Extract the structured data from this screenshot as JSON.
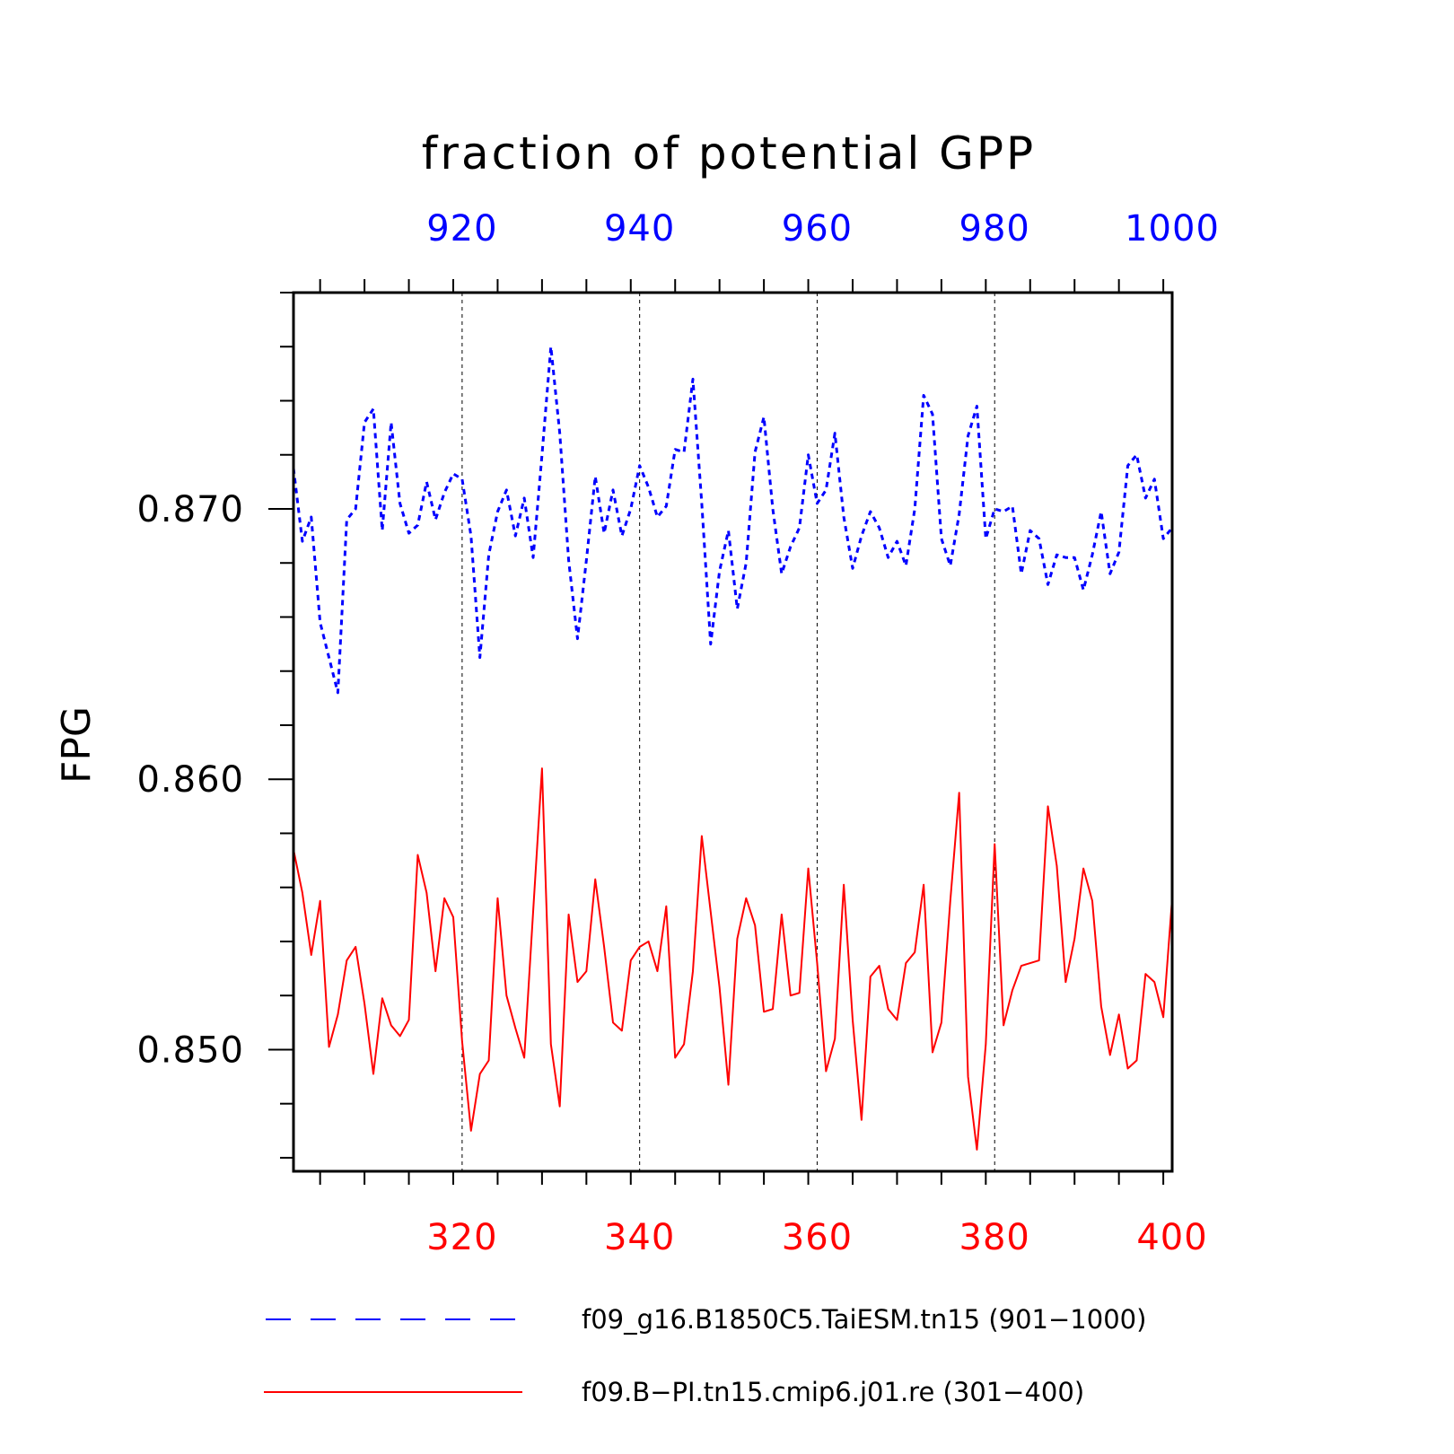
{
  "chart_data": {
    "type": "line",
    "title": "fraction of potential GPP",
    "ylabel": "FPG",
    "ylim": [
      0.8455,
      0.878
    ],
    "y_ticks": [
      0.85,
      0.86,
      0.87
    ],
    "y_tick_labels": [
      "0.850",
      "0.860",
      "0.870"
    ],
    "y_minor_step": 0.002,
    "grid_x": true,
    "legend_position": "bottom",
    "axes": {
      "top": {
        "range": [
          901,
          1000
        ],
        "ticks": [
          920,
          940,
          960,
          980,
          1000
        ],
        "tick_labels": [
          "920",
          "940",
          "960",
          "980",
          "1000"
        ],
        "color": "#0000ff"
      },
      "bottom": {
        "range": [
          301,
          400
        ],
        "ticks": [
          320,
          340,
          360,
          380,
          400
        ],
        "tick_labels": [
          "320",
          "340",
          "360",
          "380",
          "400"
        ],
        "color": "#ff0000"
      }
    },
    "series": [
      {
        "name": "f09_g16.B1850C5.TaiESM.tn15 (901−1000)",
        "axis": "top",
        "color": "#0000ff",
        "dash": "dashed",
        "x_start": 901,
        "values": [
          0.8715,
          0.8688,
          0.8697,
          0.8658,
          0.8645,
          0.8632,
          0.8696,
          0.87,
          0.8732,
          0.8737,
          0.8692,
          0.8732,
          0.8702,
          0.8691,
          0.8694,
          0.871,
          0.8696,
          0.8706,
          0.8713,
          0.8711,
          0.869,
          0.8645,
          0.8683,
          0.8699,
          0.8707,
          0.869,
          0.8704,
          0.8682,
          0.872,
          0.876,
          0.8728,
          0.8681,
          0.8652,
          0.8681,
          0.8712,
          0.8691,
          0.8707,
          0.869,
          0.87,
          0.8716,
          0.8708,
          0.8697,
          0.8701,
          0.8722,
          0.8721,
          0.8748,
          0.8702,
          0.865,
          0.8677,
          0.8692,
          0.8663,
          0.868,
          0.8721,
          0.8734,
          0.87,
          0.8676,
          0.8686,
          0.8693,
          0.872,
          0.8702,
          0.8707,
          0.8728,
          0.8697,
          0.8678,
          0.869,
          0.8699,
          0.8693,
          0.8682,
          0.8688,
          0.8679,
          0.87,
          0.8742,
          0.8735,
          0.8689,
          0.8679,
          0.8698,
          0.8727,
          0.8738,
          0.8689,
          0.87,
          0.8699,
          0.8701,
          0.8676,
          0.8692,
          0.8689,
          0.8672,
          0.8683,
          0.8682,
          0.8682,
          0.867,
          0.8683,
          0.8699,
          0.8676,
          0.8684,
          0.8716,
          0.872,
          0.8704,
          0.8711,
          0.8689,
          0.8693
        ]
      },
      {
        "name": "f09.B−PI.tn15.cmip6.j01.re (301−400)",
        "axis": "bottom",
        "color": "#ff0000",
        "dash": "solid",
        "x_start": 301,
        "values": [
          0.8574,
          0.8558,
          0.8535,
          0.8555,
          0.8501,
          0.8513,
          0.8533,
          0.8538,
          0.8517,
          0.8491,
          0.8519,
          0.8509,
          0.8505,
          0.8511,
          0.8572,
          0.8558,
          0.8529,
          0.8556,
          0.8549,
          0.8503,
          0.847,
          0.8491,
          0.8496,
          0.8556,
          0.852,
          0.8508,
          0.8497,
          0.8551,
          0.8604,
          0.8502,
          0.8479,
          0.855,
          0.8525,
          0.8529,
          0.8563,
          0.8538,
          0.851,
          0.8507,
          0.8533,
          0.8538,
          0.854,
          0.8529,
          0.8553,
          0.8497,
          0.8502,
          0.8529,
          0.8579,
          0.8551,
          0.8523,
          0.8487,
          0.8541,
          0.8556,
          0.8546,
          0.8514,
          0.8515,
          0.855,
          0.852,
          0.8521,
          0.8567,
          0.8532,
          0.8492,
          0.8504,
          0.8561,
          0.8511,
          0.8474,
          0.8527,
          0.8531,
          0.8515,
          0.8511,
          0.8532,
          0.8536,
          0.8561,
          0.8499,
          0.851,
          0.8555,
          0.8595,
          0.849,
          0.8463,
          0.8502,
          0.8576,
          0.8509,
          0.8522,
          0.8531,
          0.8532,
          0.8533,
          0.859,
          0.8568,
          0.8525,
          0.8541,
          0.8567,
          0.8555,
          0.8516,
          0.8498,
          0.8513,
          0.8493,
          0.8496,
          0.8528,
          0.8525,
          0.8512,
          0.8556
        ]
      }
    ]
  }
}
